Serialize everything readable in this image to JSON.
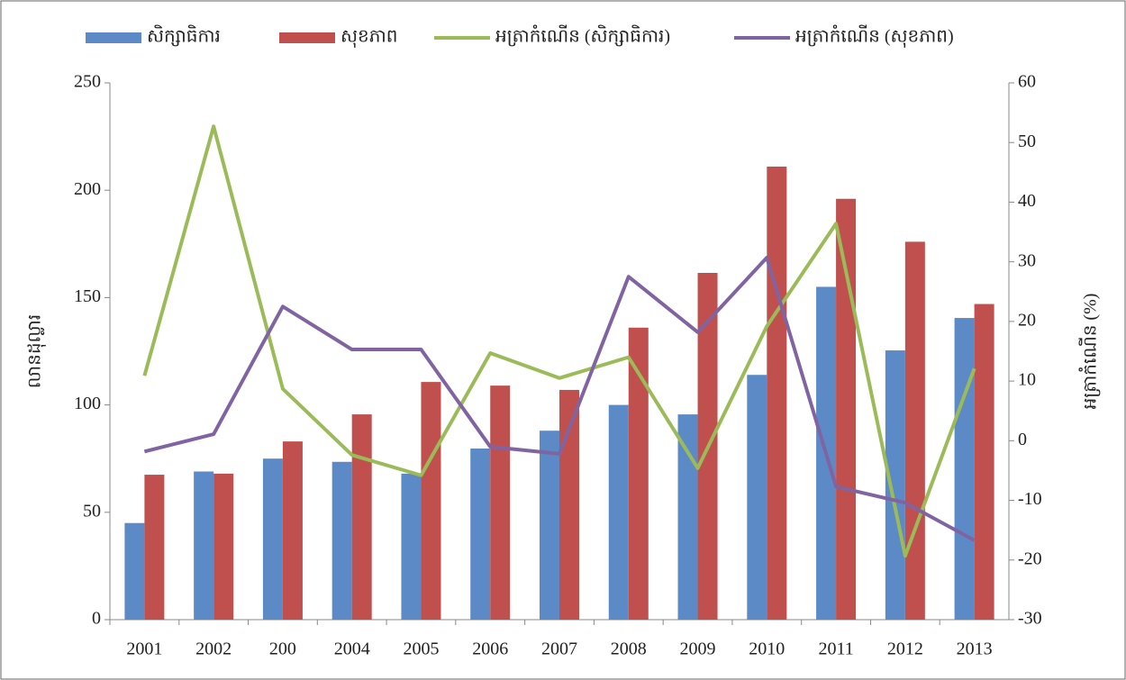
{
  "chart_data": {
    "type": "bar-line",
    "y_label": "លានដុល្លារ",
    "y2_label": "អត្រាកំណើន (%)",
    "categories": [
      "2001",
      "2002",
      "200",
      "2004",
      "2005",
      "2006",
      "2007",
      "2008",
      "2009",
      "2010",
      "2011",
      "2012",
      "2013"
    ],
    "series": [
      {
        "name": "សិក្សាធិការ",
        "type": "bar",
        "color": "#5b8ac6",
        "values": [
          45,
          69,
          75,
          73.5,
          68,
          79.7,
          88,
          100,
          95.6,
          114,
          155,
          125.4,
          140.5
        ]
      },
      {
        "name": "សុខភាព",
        "type": "bar",
        "color": "#c0504d",
        "values": [
          67.5,
          68,
          83,
          95.6,
          110.7,
          109,
          107,
          136,
          161.5,
          211,
          196,
          176,
          147
        ]
      },
      {
        "name": "អត្រាកំណើន (សិក្សាធិការ)",
        "type": "line",
        "axis": "y2",
        "color": "#9bbb59",
        "values": [
          10.9,
          52.7,
          8.7,
          -2.4,
          -5.8,
          14.7,
          10.5,
          14,
          -4.6,
          19.2,
          36.4,
          -19.3,
          12.1
        ]
      },
      {
        "name": "អត្រាកំណើន (សុខភាព)",
        "type": "line",
        "axis": "y2",
        "color": "#8064a2",
        "values": [
          -1.8,
          1.1,
          22.5,
          15.3,
          15.3,
          -1,
          -2.2,
          27.5,
          18.2,
          30.7,
          -7.7,
          -10.4,
          -16.7
        ]
      }
    ],
    "ylim": [
      0,
      250
    ],
    "yticks": [
      0,
      50,
      100,
      150,
      200,
      250
    ],
    "y2lim": [
      -30,
      60
    ],
    "y2ticks": [
      -30,
      -20,
      -10,
      0,
      10,
      20,
      30,
      40,
      50,
      60
    ],
    "legend": "top"
  }
}
